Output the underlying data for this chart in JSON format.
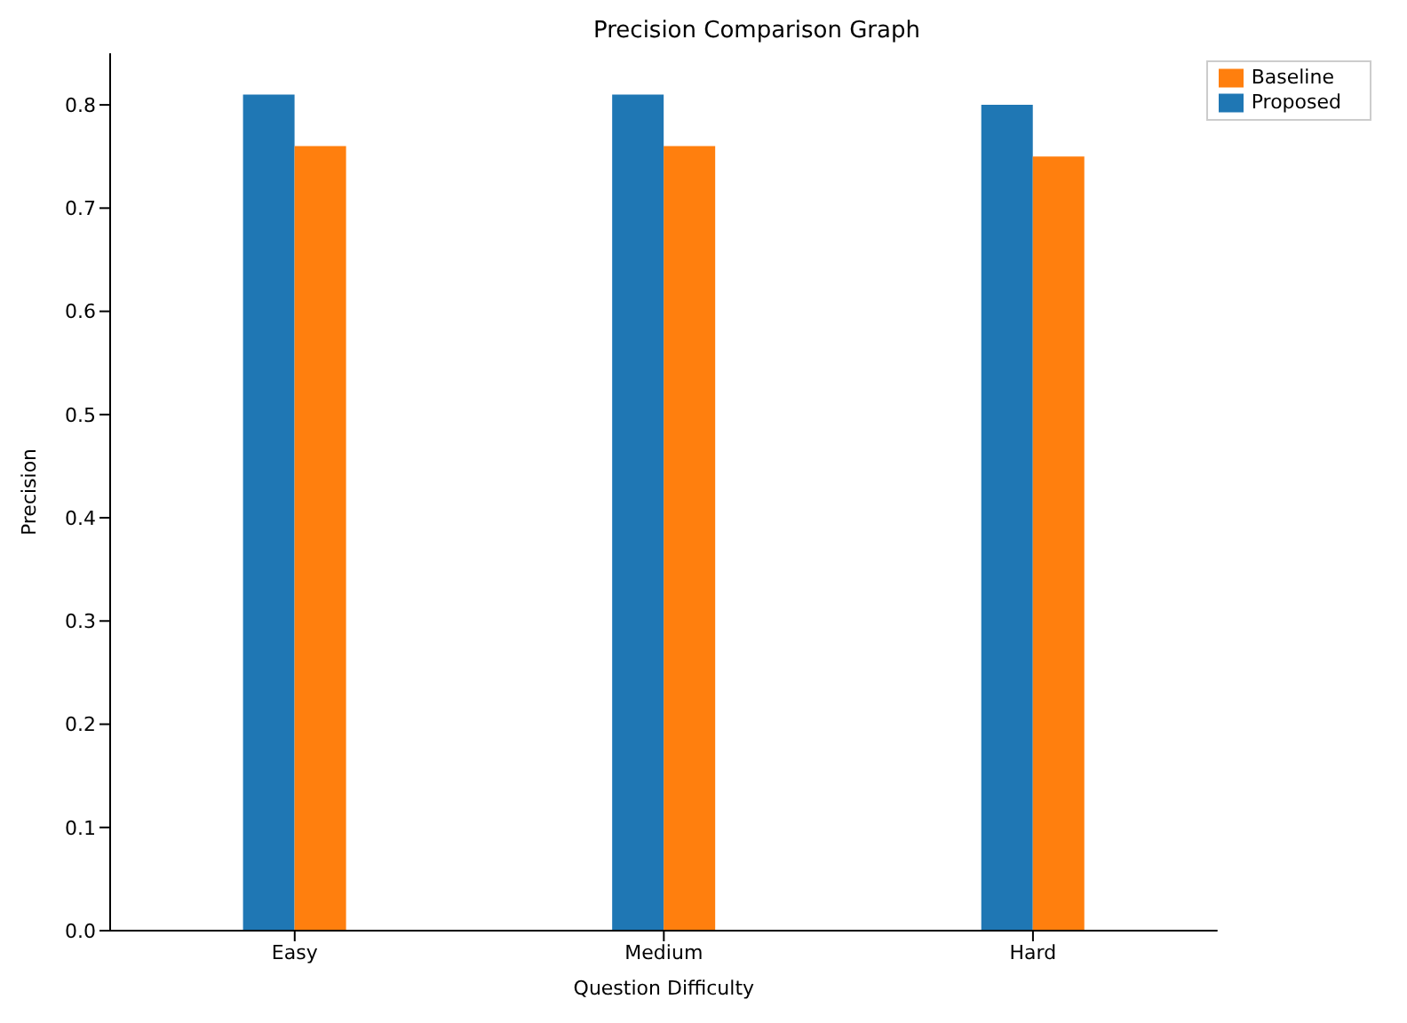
{
  "chart_data": {
    "type": "bar",
    "title": "Precision Comparison Graph",
    "xlabel": "Question Difficulty",
    "ylabel": "Precision",
    "categories": [
      "Easy",
      "Medium",
      "Hard"
    ],
    "series": [
      {
        "name": "Proposed",
        "color": "#1f77b4",
        "values": [
          0.81,
          0.81,
          0.8
        ]
      },
      {
        "name": "Baseline",
        "color": "#ff7f0e",
        "values": [
          0.76,
          0.76,
          0.75
        ]
      }
    ],
    "ylim": [
      0,
      0.85
    ],
    "yticks": [
      {
        "value": 0,
        "label": "0.0"
      },
      0.1,
      0.2,
      0.3,
      0.4,
      0.5,
      0.6,
      0.7,
      0.8
    ],
    "grid": false,
    "legend": "top right"
  }
}
